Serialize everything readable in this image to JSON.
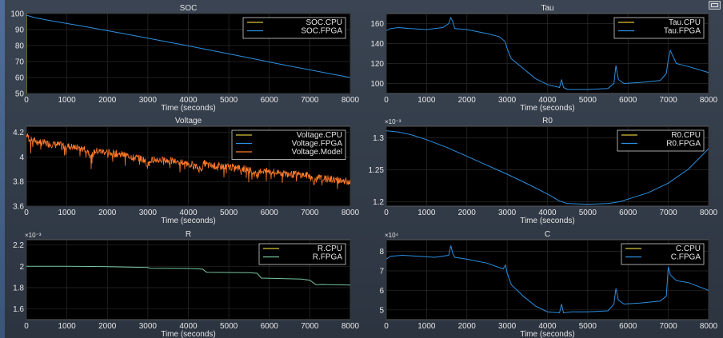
{
  "colors": {
    "cpu": "#d8c23a",
    "fpga": "#2c8fe0",
    "model": "#ff7a2a",
    "overlap": "#76c7a0",
    "background": "#000000",
    "text": "#e6e6e6"
  },
  "chart_data": [
    {
      "id": "soc",
      "type": "line",
      "title": "SOC",
      "xlabel": "Time (seconds)",
      "exponent": "",
      "xlim": [
        0,
        8000
      ],
      "ylim": [
        50,
        100
      ],
      "xticks": [
        "0",
        "1000",
        "2000",
        "3000",
        "4000",
        "5000",
        "6000",
        "7000",
        "8000"
      ],
      "yticks": [
        50,
        60,
        70,
        80,
        90,
        100
      ],
      "ytick_labels": [
        "50",
        "60",
        "70",
        "80",
        "90",
        "100"
      ],
      "legend_position": "top-right",
      "series": [
        {
          "name": "SOC.CPU",
          "color_key": "cpu",
          "x": [
            0,
            0,
            0
          ],
          "y": [
            50,
            75,
            100
          ]
        },
        {
          "name": "SOC.FPGA",
          "color_key": "fpga",
          "x": [
            0,
            200,
            500,
            1000,
            1500,
            2000,
            2500,
            3000,
            3500,
            4000,
            4500,
            5000,
            5500,
            6000,
            6500,
            7000,
            7500,
            8000
          ],
          "y": [
            99,
            97.5,
            96,
            93.8,
            91.6,
            89.3,
            87,
            84.6,
            82.2,
            79.8,
            77.3,
            74.8,
            72.3,
            69.7,
            67.2,
            64.8,
            62.4,
            60
          ]
        }
      ]
    },
    {
      "id": "tau",
      "type": "line",
      "title": "Tau",
      "xlabel": "Time (seconds)",
      "exponent": "",
      "xlim": [
        0,
        8000
      ],
      "ylim": [
        90,
        170
      ],
      "xticks": [
        "0",
        "1000",
        "2000",
        "3000",
        "4000",
        "5000",
        "6000",
        "7000",
        "8000"
      ],
      "yticks": [
        100,
        120,
        140,
        160
      ],
      "ytick_labels": [
        "100",
        "120",
        "140",
        "160"
      ],
      "legend_position": "top-right",
      "series": [
        {
          "name": "Tau.CPU",
          "color_key": "cpu",
          "x": [],
          "y": []
        },
        {
          "name": "Tau.FPGA",
          "color_key": "fpga",
          "x": [
            0,
            100,
            300,
            600,
            1000,
            1400,
            1550,
            1600,
            1650,
            1700,
            2000,
            2500,
            2800,
            2950,
            3000,
            3100,
            3400,
            3700,
            4000,
            4300,
            4350,
            4400,
            4500,
            5000,
            5500,
            5650,
            5700,
            5760,
            5900,
            6300,
            6800,
            6950,
            7000,
            7050,
            7200,
            7500,
            8000
          ],
          "y": [
            153,
            155,
            156,
            155,
            154,
            156,
            160,
            166,
            162,
            155,
            154,
            150,
            147,
            142,
            135,
            125,
            115,
            105,
            99,
            96,
            104,
            96,
            94,
            94,
            95,
            100,
            118,
            104,
            100,
            101,
            103,
            110,
            124,
            133,
            120,
            117,
            111
          ]
        }
      ]
    },
    {
      "id": "voltage",
      "type": "line",
      "title": "Voltage",
      "xlabel": "Time (seconds)",
      "exponent": "",
      "xlim": [
        0,
        8000
      ],
      "ylim": [
        3.6,
        4.25
      ],
      "xticks": [
        "0",
        "1000",
        "2000",
        "3000",
        "4000",
        "5000",
        "6000",
        "7000",
        "8000"
      ],
      "yticks": [
        3.6,
        3.8,
        4.0,
        4.2
      ],
      "ytick_labels": [
        "3.6",
        "3.8",
        "4",
        "4.2"
      ],
      "legend_position": "top-right",
      "noise_amplitude": 0.06,
      "series": [
        {
          "name": "Voltage.CPU",
          "color_key": "cpu",
          "x": [],
          "y": []
        },
        {
          "name": "Voltage.FPGA",
          "color_key": "fpga",
          "x": [],
          "y": []
        },
        {
          "name": "Voltage.Model",
          "color_key": "model",
          "x": [
            0,
            100,
            500,
            1000,
            1500,
            1600,
            1700,
            2000,
            2500,
            2900,
            3000,
            3100,
            3500,
            4000,
            4300,
            4400,
            4500,
            5000,
            5500,
            5700,
            5800,
            6000,
            6500,
            7000,
            7100,
            7200,
            7500,
            8000
          ],
          "y": [
            4.18,
            4.14,
            4.11,
            4.09,
            4.06,
            4.0,
            4.05,
            4.04,
            4.01,
            3.98,
            3.93,
            3.98,
            3.97,
            3.95,
            3.9,
            3.95,
            3.93,
            3.92,
            3.9,
            3.85,
            3.89,
            3.88,
            3.86,
            3.85,
            3.8,
            3.83,
            3.82,
            3.8
          ]
        }
      ]
    },
    {
      "id": "r0",
      "type": "line",
      "title": "R0",
      "xlabel": "Time (seconds)",
      "exponent": "×10⁻³",
      "xlim": [
        0,
        8000
      ],
      "ylim": [
        1.193,
        1.318
      ],
      "xticks": [
        "0",
        "1000",
        "2000",
        "3000",
        "4000",
        "5000",
        "6000",
        "7000",
        "8000"
      ],
      "yticks": [
        1.2,
        1.25,
        1.3
      ],
      "ytick_labels": [
        "1.2",
        "1.25",
        "1.3"
      ],
      "legend_position": "top-right",
      "series": [
        {
          "name": "R0.CPU",
          "color_key": "cpu",
          "x": [],
          "y": []
        },
        {
          "name": "R0.FPGA",
          "color_key": "fpga",
          "x": [
            0,
            300,
            600,
            1000,
            1500,
            2000,
            2500,
            3000,
            3500,
            4000,
            4300,
            4500,
            5000,
            5500,
            5800,
            6000,
            6500,
            7000,
            7500,
            8000
          ],
          "y": [
            1.311,
            1.309,
            1.305,
            1.297,
            1.285,
            1.271,
            1.257,
            1.243,
            1.228,
            1.212,
            1.201,
            1.197,
            1.196,
            1.197,
            1.2,
            1.204,
            1.214,
            1.229,
            1.251,
            1.283
          ]
        }
      ]
    },
    {
      "id": "r",
      "type": "line",
      "title": "R",
      "xlabel": "Time (seconds)",
      "exponent": "×10⁻³",
      "xlim": [
        0,
        8000
      ],
      "ylim": [
        1.5,
        2.25
      ],
      "xticks": [
        "0",
        "1000",
        "2000",
        "3000",
        "4000",
        "5000",
        "6000",
        "7000",
        "8000"
      ],
      "yticks": [
        1.6,
        1.8,
        2.0,
        2.2
      ],
      "ytick_labels": [
        "1.6",
        "1.8",
        "2",
        "2.2"
      ],
      "legend_position": "top-right",
      "series": [
        {
          "name": "R.CPU",
          "color_key": "cpu",
          "x": [],
          "y": []
        },
        {
          "name": "R.FPGA",
          "color_key": "overlap",
          "x": [
            0,
            1000,
            2000,
            3000,
            3050,
            4000,
            4350,
            4450,
            5500,
            5700,
            5800,
            6800,
            7000,
            7150,
            7300,
            8000
          ],
          "y": [
            2.0,
            2.0,
            1.997,
            1.99,
            1.982,
            1.98,
            1.975,
            1.945,
            1.94,
            1.935,
            1.89,
            1.88,
            1.87,
            1.828,
            1.83,
            1.825
          ]
        }
      ]
    },
    {
      "id": "c",
      "type": "line",
      "title": "C",
      "xlabel": "Time (seconds)",
      "exponent": "×10⁴",
      "xlim": [
        0,
        8000
      ],
      "ylim": [
        4.5,
        8.6
      ],
      "xticks": [
        "0",
        "1000",
        "2000",
        "3000",
        "4000",
        "5000",
        "6000",
        "7000",
        "8000"
      ],
      "yticks": [
        5,
        6,
        7,
        8
      ],
      "ytick_labels": [
        "5",
        "6",
        "7",
        "8"
      ],
      "legend_position": "top-right",
      "series": [
        {
          "name": "C.CPU",
          "color_key": "cpu",
          "x": [],
          "y": []
        },
        {
          "name": "C.FPGA",
          "color_key": "fpga",
          "x": [
            0,
            100,
            400,
            800,
            1200,
            1550,
            1600,
            1650,
            1700,
            2000,
            2500,
            2900,
            2960,
            3000,
            3100,
            3400,
            3700,
            4000,
            4300,
            4350,
            4400,
            4600,
            5000,
            5500,
            5650,
            5700,
            5760,
            5900,
            6300,
            6800,
            6950,
            7000,
            7050,
            7200,
            7500,
            8000
          ],
          "y": [
            7.6,
            7.75,
            7.8,
            7.75,
            7.7,
            7.8,
            8.3,
            7.9,
            7.7,
            7.6,
            7.4,
            7.1,
            7.3,
            6.9,
            6.3,
            5.7,
            5.2,
            4.9,
            4.85,
            5.3,
            4.85,
            4.9,
            4.9,
            4.95,
            5.3,
            6.1,
            5.5,
            5.3,
            5.35,
            5.45,
            5.7,
            7.2,
            6.8,
            6.5,
            6.4,
            6.0
          ]
        }
      ]
    }
  ]
}
